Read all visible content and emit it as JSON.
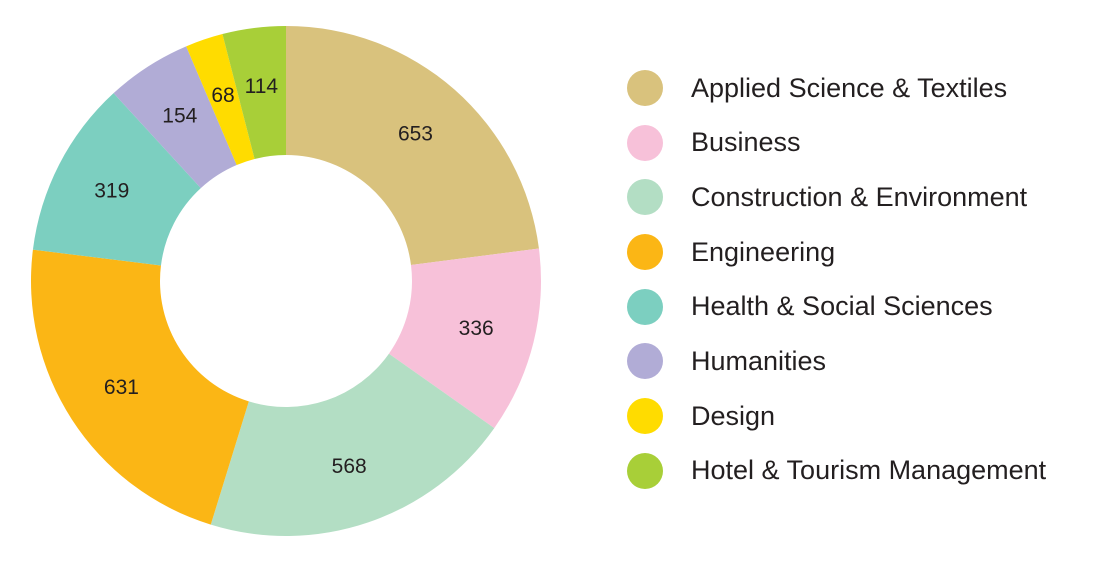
{
  "chart_data": {
    "type": "pie",
    "donut": true,
    "legend_position": "right",
    "slices": [
      {
        "label": "Applied Science & Textiles",
        "value": 653,
        "color": "#d9c27d"
      },
      {
        "label": "Business",
        "value": 336,
        "color": "#f7c1d9"
      },
      {
        "label": "Construction & Environment",
        "value": 568,
        "color": "#b3dec4"
      },
      {
        "label": "Engineering",
        "value": 631,
        "color": "#fbb615"
      },
      {
        "label": "Health & Social Sciences",
        "value": 319,
        "color": "#7ccfc0"
      },
      {
        "label": "Humanities",
        "value": 154,
        "color": "#b1acd6"
      },
      {
        "label": "Design",
        "value": 68,
        "color": "#ffdc00"
      },
      {
        "label": "Hotel & Tourism Management",
        "value": 114,
        "color": "#a8cf38"
      }
    ]
  }
}
